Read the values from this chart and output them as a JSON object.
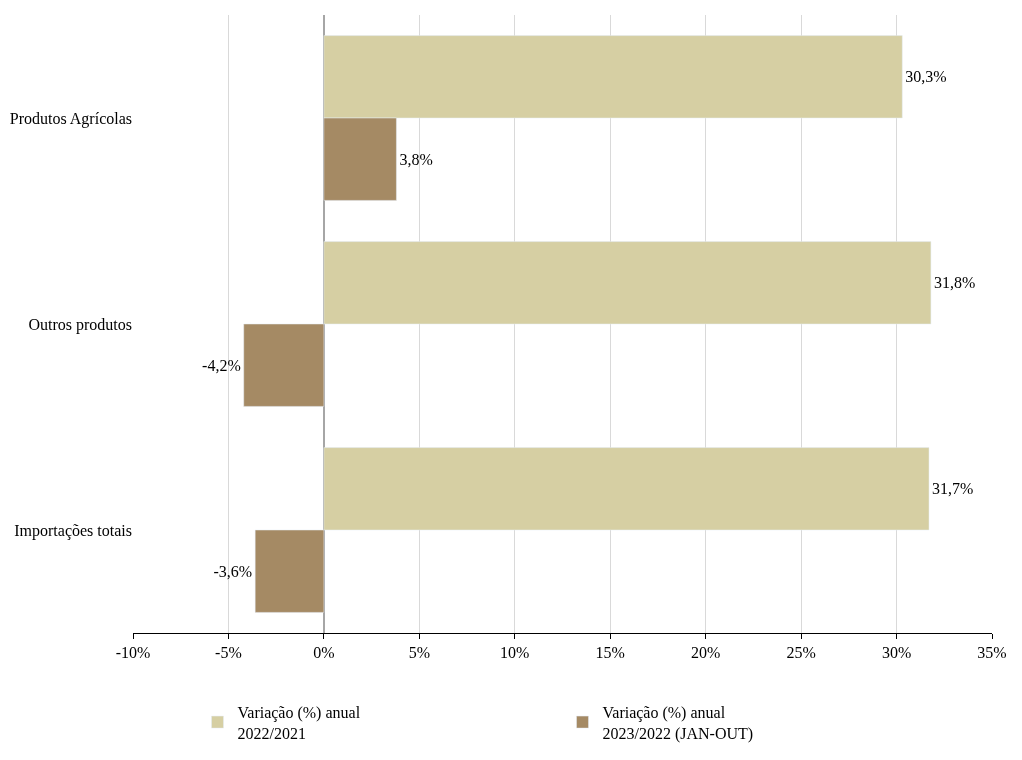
{
  "chart_data": {
    "type": "bar",
    "orientation": "horizontal",
    "categories": [
      "Produtos Agrícolas",
      "Outros produtos",
      "Importações totais"
    ],
    "series": [
      {
        "name": "Variação (%) anual\n2022/2021",
        "color": "#d6cfa3",
        "values": [
          30.3,
          31.8,
          31.7
        ],
        "value_labels": [
          "30,3%",
          "31,8%",
          "31,7%"
        ]
      },
      {
        "name": "Variação (%) anual\n2023/2022 (JAN-OUT)",
        "color": "#a58a64",
        "values": [
          3.8,
          -4.2,
          -3.6
        ],
        "value_labels": [
          "3,8%",
          "-4,2%",
          "-3,6%"
        ]
      }
    ],
    "xlim": [
      -10,
      35
    ],
    "xticks": [
      {
        "value": -10,
        "label": "-10%"
      },
      {
        "value": -5,
        "label": "-5%"
      },
      {
        "value": 0,
        "label": "0%"
      },
      {
        "value": 5,
        "label": "5%"
      },
      {
        "value": 10,
        "label": "10%"
      },
      {
        "value": 15,
        "label": "15%"
      },
      {
        "value": 20,
        "label": "20%"
      },
      {
        "value": 25,
        "label": "25%"
      },
      {
        "value": 30,
        "label": "30%"
      },
      {
        "value": 35,
        "label": "35%"
      }
    ],
    "grid": "x",
    "legend": "bottom"
  }
}
